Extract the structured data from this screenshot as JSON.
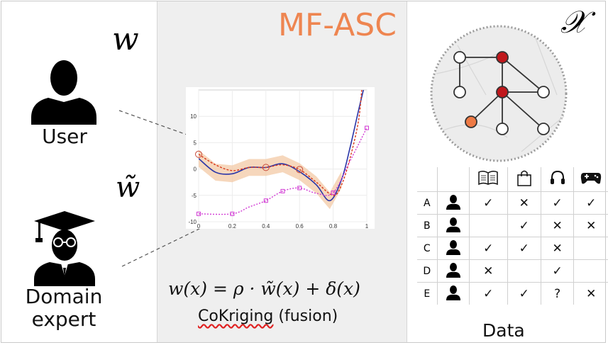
{
  "title": "MF-ASC",
  "w_symbol": "w",
  "w_tilde_symbol": "w̃",
  "x_symbol": "𝒳",
  "user_label": "User",
  "expert_label_line1": "Domain",
  "expert_label_line2": "expert",
  "equation": "w(x) = ρ · w̃(x) + δ(x)",
  "fusion_word": "CoKriging",
  "fusion_rest": "(fusion)",
  "data_label": "Data",
  "colors": {
    "title": "#ee8550",
    "red_node": "#c0181c",
    "orange_node": "#ee7a45",
    "high_fi": "#2a35a8",
    "low_fi": "#d13ad4",
    "band": "#f3c9a5"
  },
  "icons": [
    "user-icon",
    "graduate-icon",
    "book-icon",
    "shopping-bag-icon",
    "headphones-icon",
    "gamepad-icon"
  ],
  "table": {
    "rows": [
      {
        "id": "A",
        "cells": [
          "✓",
          "✕",
          "✓",
          "✓"
        ]
      },
      {
        "id": "B",
        "cells": [
          "",
          "✓",
          "✕",
          "✕"
        ]
      },
      {
        "id": "C",
        "cells": [
          "✓",
          "✓",
          "✕",
          ""
        ]
      },
      {
        "id": "D",
        "cells": [
          "✕",
          "",
          "✓",
          ""
        ]
      },
      {
        "id": "E",
        "cells": [
          "✓",
          "✓",
          "?",
          "✕"
        ]
      }
    ]
  },
  "chart_data": {
    "type": "line",
    "xlim": [
      0,
      1
    ],
    "ylim": [
      -10,
      15
    ],
    "x_ticks": [
      "0",
      "0.2",
      "0.4",
      "0.6",
      "0.8",
      "1"
    ],
    "y_ticks": [
      "10",
      "5",
      "0",
      "-5",
      "-10"
    ],
    "series": [
      {
        "style": "solid-blue",
        "points": [
          [
            0,
            2
          ],
          [
            0.1,
            -0.6
          ],
          [
            0.2,
            -0.9
          ],
          [
            0.3,
            0.3
          ],
          [
            0.4,
            0.3
          ],
          [
            0.5,
            1
          ],
          [
            0.6,
            -0.5
          ],
          [
            0.7,
            -3
          ],
          [
            0.78,
            -6
          ],
          [
            0.85,
            -2
          ],
          [
            0.9,
            4
          ],
          [
            0.95,
            11
          ],
          [
            0.98,
            15
          ]
        ]
      },
      {
        "style": "dashed-red",
        "points": [
          [
            0,
            2.8
          ],
          [
            0.1,
            0.8
          ],
          [
            0.2,
            -0.3
          ],
          [
            0.3,
            0.3
          ],
          [
            0.4,
            0.3
          ],
          [
            0.5,
            0.8
          ],
          [
            0.6,
            -0.1
          ],
          [
            0.7,
            -2.5
          ],
          [
            0.8,
            -5
          ],
          [
            0.85,
            -3
          ],
          [
            0.9,
            2
          ],
          [
            0.95,
            9
          ],
          [
            0.97,
            15
          ]
        ]
      },
      {
        "style": "dotted-magenta",
        "points": [
          [
            0,
            -8.5
          ],
          [
            0.2,
            -8.5
          ],
          [
            0.3,
            -7.2
          ],
          [
            0.4,
            -6
          ],
          [
            0.5,
            -4.2
          ],
          [
            0.6,
            -3.6
          ],
          [
            0.7,
            -4.6
          ],
          [
            0.8,
            -4.5
          ],
          [
            0.9,
            1.5
          ],
          [
            1,
            7.8
          ]
        ]
      }
    ],
    "high_fidelity_samples": [
      [
        0,
        2.8
      ],
      [
        0.4,
        0.3
      ],
      [
        0.6,
        -0.1
      ]
    ],
    "low_fidelity_samples": [
      [
        0,
        -8.5
      ],
      [
        0.2,
        -8.5
      ],
      [
        0.4,
        -6
      ],
      [
        0.5,
        -4.2
      ],
      [
        0.6,
        -3.6
      ],
      [
        0.8,
        -4.5
      ],
      [
        1,
        7.8
      ]
    ]
  }
}
